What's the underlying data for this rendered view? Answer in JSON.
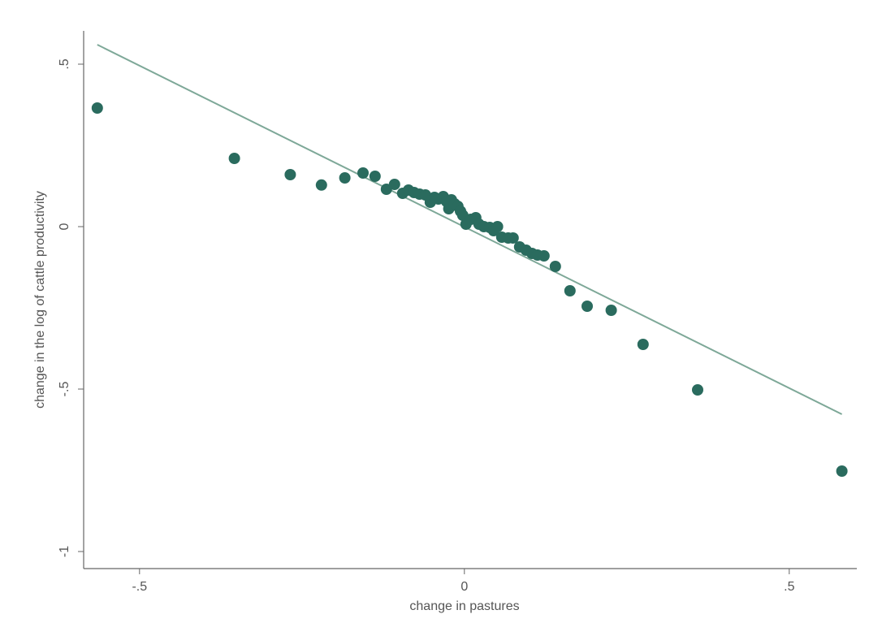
{
  "chart_data": {
    "type": "scatter",
    "x_label": "change in pastures",
    "y_label": "change in the log of cattle productivity",
    "xlim": [
      -0.586,
      0.604
    ],
    "ylim": [
      -1.0525,
      0.6025
    ],
    "xticks": [
      {
        "value": -0.5,
        "label": "-.5"
      },
      0,
      {
        "value": 0.5,
        "label": ".5"
      }
    ],
    "yticks": [
      -1,
      {
        "value": -0.5,
        "label": "-.5"
      },
      0,
      {
        "value": 0.5,
        "label": ".5"
      }
    ],
    "color": "#2a6b5e",
    "x": [
      -0.565,
      -0.354,
      -0.268,
      -0.22,
      -0.184,
      -0.156,
      -0.1375,
      -0.12,
      -0.1075,
      -0.095,
      -0.086,
      -0.0775,
      -0.069,
      -0.06,
      -0.0525,
      -0.046,
      -0.04,
      -0.0325,
      -0.0275,
      -0.024,
      -0.02,
      -0.015,
      -0.01,
      -0.006,
      -0.0025,
      0.0025,
      0.01,
      0.0175,
      0.0225,
      0.03,
      0.039,
      0.045,
      0.051,
      0.0575,
      0.0675,
      0.075,
      0.085,
      0.095,
      0.104,
      0.1125,
      0.1225,
      0.14,
      0.1625,
      0.189,
      0.226,
      0.275,
      0.359,
      0.581
    ],
    "values": [
      0.365,
      0.21,
      0.16,
      0.128,
      0.15,
      0.165,
      0.155,
      0.115,
      0.13,
      0.1025,
      0.1125,
      0.105,
      0.1,
      0.0975,
      0.075,
      0.09,
      0.085,
      0.0925,
      0.0775,
      0.055,
      0.0825,
      0.07,
      0.0625,
      0.0475,
      0.035,
      0.0075,
      0.0225,
      0.0275,
      0.0075,
      0,
      -0.0025,
      -0.0125,
      0,
      -0.0325,
      -0.035,
      -0.035,
      -0.0625,
      -0.0725,
      -0.0825,
      -0.0875,
      -0.09,
      -0.1225,
      -0.1975,
      -0.245,
      -0.2575,
      -0.3625,
      -0.5025,
      -0.7525
    ],
    "fit": {
      "color": "#7ea898",
      "x": [
        -0.565,
        0.581
      ],
      "y": [
        0.56,
        -0.5775
      ]
    }
  }
}
